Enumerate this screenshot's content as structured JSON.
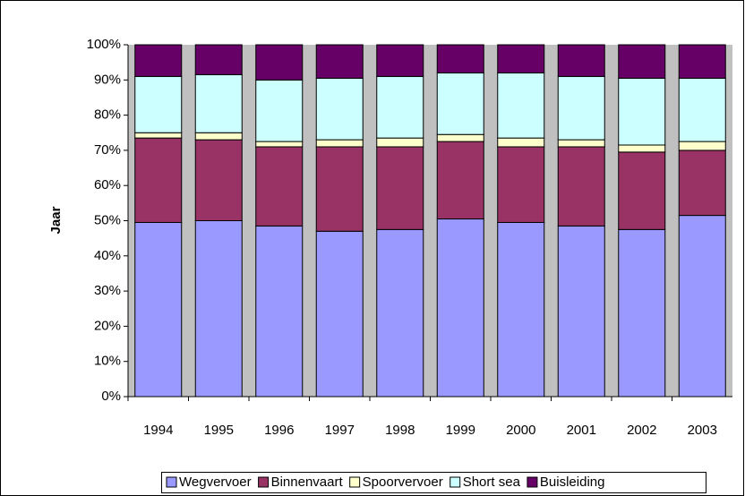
{
  "chart_data": {
    "type": "bar",
    "stacked": true,
    "y_label": "Jaar",
    "categories": [
      "1994",
      "1995",
      "1996",
      "1997",
      "1998",
      "1999",
      "2000",
      "2001",
      "2002",
      "2003"
    ],
    "series": [
      {
        "name": "Wegvervoer",
        "color": "#9999ff",
        "values": [
          49.5,
          50,
          48.5,
          47,
          47.5,
          50.5,
          49.5,
          48.5,
          47.5,
          51.5
        ]
      },
      {
        "name": "Binnenvaart",
        "color": "#993366",
        "values": [
          24,
          23,
          22.5,
          24,
          23.5,
          22,
          21.5,
          22.5,
          22,
          18.5
        ]
      },
      {
        "name": "Spoorvervoer",
        "color": "#ffffcc",
        "values": [
          1.5,
          2,
          1.5,
          2,
          2.5,
          2,
          2.5,
          2,
          2,
          2.5
        ]
      },
      {
        "name": "Short sea",
        "color": "#ccffff",
        "values": [
          16,
          16.5,
          17.5,
          17.5,
          17.5,
          17.5,
          18.5,
          18,
          19,
          18
        ]
      },
      {
        "name": "Buisleiding",
        "color": "#660066",
        "values": [
          9,
          8.5,
          10,
          9.5,
          9,
          8,
          8,
          9,
          9.5,
          9.5
        ]
      }
    ],
    "ylim": [
      0,
      100
    ],
    "yticks": [
      {
        "value": 0,
        "label": "0%"
      },
      {
        "value": 10,
        "label": "10%"
      },
      {
        "value": 20,
        "label": "20%"
      },
      {
        "value": 30,
        "label": "30%"
      },
      {
        "value": 40,
        "label": "40%"
      },
      {
        "value": 50,
        "label": "50%"
      },
      {
        "value": 60,
        "label": "60%"
      },
      {
        "value": 70,
        "label": "70%"
      },
      {
        "value": 80,
        "label": "80%"
      },
      {
        "value": 90,
        "label": "90%"
      },
      {
        "value": 100,
        "label": "100%"
      }
    ],
    "plot_background": "#c0c0c0",
    "legend": "bottom"
  }
}
